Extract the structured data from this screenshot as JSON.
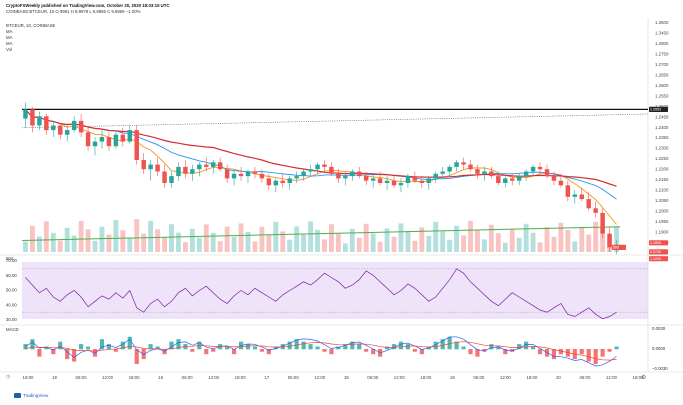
{
  "header": {
    "line1": "CryptoFXWeekly published on TradingView.com, October 20, 2020 18:03:15 UTC",
    "line2": "COINBASE:BTCEUR, 10  O 9991  H 9,9978  L 9,9955  C 9,9969  −1.00%",
    "pair_label": "BTCEUR, 10, COINBASE",
    "ma_labels": [
      "MA",
      "MA",
      "MA",
      "Vol"
    ],
    "rsi_label": "RSI",
    "macd_label": "MACD"
  },
  "footer": {
    "brand": "TradingView",
    "gear_icon": "gear-icon",
    "utc_icon": "clock-icon"
  },
  "colors": {
    "up": "#26a69a",
    "down": "#ef5350",
    "ma_orange": "#f7931a",
    "ma_red": "#d32f2f",
    "ma_blue": "#2196f3",
    "ma_green": "#4caf50",
    "rsi_line": "#7b1fa2",
    "rsi_band": "#efe3fa",
    "macd_blue": "#2962ff",
    "macd_red": "#f44336"
  },
  "chart_data": [
    {
      "type": "candlestick",
      "ylim": [
        0.99,
        1.0
      ],
      "y_tick_labels": [
        "1.3500",
        "1.3450",
        "1.2800",
        "1.2750",
        "1.2700",
        "1.2650",
        "1.2600",
        "1.2550",
        "1.2500",
        "1.2450",
        "1.2400",
        "1.2350",
        "1.2300",
        "1.2250",
        "1.2200",
        "1.2150",
        "1.2100",
        "1.2050",
        "1.2000",
        "1.1950",
        "1.1900",
        "1.1850"
      ],
      "x_tick_labels": [
        "18:00",
        "19",
        "06:00",
        "12:00",
        "18:00",
        "16",
        "06:00",
        "12:00",
        "18:00",
        "17",
        "06:00",
        "12:00",
        "18",
        "06:00",
        "12:00",
        "18:00",
        "19",
        "06:00",
        "12:00",
        "18:00",
        "20",
        "06:00",
        "12:00",
        "18:00"
      ],
      "horizontal_level": 0.9962,
      "price_badges": [
        {
          "label": "1.2853",
          "color": "#222222"
        },
        {
          "label": "1.1806",
          "color": "#ef5350"
        },
        {
          "label": "0.5720",
          "color": "#ef5350"
        },
        {
          "label": "1.1200",
          "color": "#ef5350"
        }
      ],
      "volume_badge": "500",
      "candles": [
        [
          0.9958,
          0.9965,
          0.9954,
          0.9962
        ],
        [
          0.9962,
          0.9963,
          0.9952,
          0.9955
        ],
        [
          0.9955,
          0.9961,
          0.9953,
          0.9959
        ],
        [
          0.9959,
          0.996,
          0.9951,
          0.9953
        ],
        [
          0.9953,
          0.9957,
          0.995,
          0.9955
        ],
        [
          0.9955,
          0.9956,
          0.9949,
          0.9951
        ],
        [
          0.9951,
          0.9955,
          0.9948,
          0.9953
        ],
        [
          0.9953,
          0.9959,
          0.9952,
          0.9957
        ],
        [
          0.9957,
          0.996,
          0.995,
          0.9952
        ],
        [
          0.9952,
          0.9954,
          0.9944,
          0.9946
        ],
        [
          0.9946,
          0.995,
          0.9942,
          0.9948
        ],
        [
          0.9948,
          0.9953,
          0.9945,
          0.995
        ],
        [
          0.995,
          0.9952,
          0.9944,
          0.9946
        ],
        [
          0.9946,
          0.9953,
          0.9945,
          0.9951
        ],
        [
          0.9951,
          0.9954,
          0.9946,
          0.9948
        ],
        [
          0.9948,
          0.9955,
          0.9947,
          0.9953
        ],
        [
          0.9953,
          0.9955,
          0.9938,
          0.994
        ],
        [
          0.994,
          0.9943,
          0.9934,
          0.9936
        ],
        [
          0.9936,
          0.994,
          0.9931,
          0.9938
        ],
        [
          0.9938,
          0.9941,
          0.9933,
          0.9935
        ],
        [
          0.9935,
          0.9938,
          0.9928,
          0.993
        ],
        [
          0.993,
          0.9935,
          0.9928,
          0.9933
        ],
        [
          0.9933,
          0.9939,
          0.9931,
          0.9937
        ],
        [
          0.9937,
          0.994,
          0.9932,
          0.9934
        ],
        [
          0.9934,
          0.9938,
          0.9931,
          0.9936
        ],
        [
          0.9936,
          0.9939,
          0.9933,
          0.9938
        ],
        [
          0.9938,
          0.9941,
          0.9935,
          0.9937
        ],
        [
          0.9937,
          0.994,
          0.9934,
          0.9939
        ],
        [
          0.9939,
          0.9941,
          0.9935,
          0.9936
        ],
        [
          0.9936,
          0.9938,
          0.993,
          0.9932
        ],
        [
          0.9932,
          0.9936,
          0.9929,
          0.9934
        ],
        [
          0.9934,
          0.9937,
          0.9931,
          0.9933
        ],
        [
          0.9933,
          0.9936,
          0.993,
          0.9935
        ],
        [
          0.9935,
          0.9937,
          0.9932,
          0.9934
        ],
        [
          0.9934,
          0.9936,
          0.993,
          0.9932
        ],
        [
          0.9932,
          0.9934,
          0.9927,
          0.9929
        ],
        [
          0.9929,
          0.9932,
          0.9926,
          0.9931
        ],
        [
          0.9931,
          0.9934,
          0.9928,
          0.993
        ],
        [
          0.993,
          0.9933,
          0.9927,
          0.9932
        ],
        [
          0.9932,
          0.9935,
          0.993,
          0.9933
        ],
        [
          0.9933,
          0.9936,
          0.9931,
          0.9935
        ],
        [
          0.9935,
          0.9938,
          0.9933,
          0.9936
        ],
        [
          0.9936,
          0.9939,
          0.9934,
          0.9938
        ],
        [
          0.9938,
          0.994,
          0.9935,
          0.9937
        ],
        [
          0.9937,
          0.9939,
          0.9933,
          0.9934
        ],
        [
          0.9934,
          0.9936,
          0.993,
          0.9932
        ],
        [
          0.9932,
          0.9935,
          0.9929,
          0.9933
        ],
        [
          0.9933,
          0.9936,
          0.9931,
          0.9935
        ],
        [
          0.9935,
          0.9937,
          0.9932,
          0.9933
        ],
        [
          0.9933,
          0.9935,
          0.9929,
          0.9931
        ],
        [
          0.9931,
          0.9934,
          0.9928,
          0.9932
        ],
        [
          0.9932,
          0.9935,
          0.9929,
          0.993
        ],
        [
          0.993,
          0.9933,
          0.9927,
          0.9931
        ],
        [
          0.9931,
          0.9933,
          0.9928,
          0.9929
        ],
        [
          0.9929,
          0.9932,
          0.9926,
          0.993
        ],
        [
          0.993,
          0.9934,
          0.9928,
          0.9933
        ],
        [
          0.9933,
          0.9935,
          0.993,
          0.9931
        ],
        [
          0.9931,
          0.9933,
          0.9928,
          0.993
        ],
        [
          0.993,
          0.9933,
          0.9927,
          0.9932
        ],
        [
          0.9932,
          0.9935,
          0.993,
          0.9934
        ],
        [
          0.9934,
          0.9937,
          0.9932,
          0.9935
        ],
        [
          0.9935,
          0.9938,
          0.9933,
          0.9937
        ],
        [
          0.9937,
          0.994,
          0.9935,
          0.9939
        ],
        [
          0.9939,
          0.9941,
          0.9936,
          0.9938
        ],
        [
          0.9938,
          0.994,
          0.9935,
          0.9936
        ],
        [
          0.9936,
          0.9938,
          0.9932,
          0.9934
        ],
        [
          0.9934,
          0.9937,
          0.9931,
          0.9935
        ],
        [
          0.9935,
          0.9937,
          0.9932,
          0.9933
        ],
        [
          0.9933,
          0.9935,
          0.9929,
          0.993
        ],
        [
          0.993,
          0.9933,
          0.9928,
          0.9932
        ],
        [
          0.9932,
          0.9934,
          0.9929,
          0.9931
        ],
        [
          0.9931,
          0.9934,
          0.9929,
          0.9933
        ],
        [
          0.9933,
          0.9936,
          0.9931,
          0.9935
        ],
        [
          0.9935,
          0.9938,
          0.9933,
          0.9937
        ],
        [
          0.9937,
          0.9939,
          0.9934,
          0.9936
        ],
        [
          0.9936,
          0.9938,
          0.9932,
          0.9933
        ],
        [
          0.9933,
          0.9935,
          0.9929,
          0.9931
        ],
        [
          0.9931,
          0.9934,
          0.9928,
          0.9929
        ],
        [
          0.9929,
          0.9931,
          0.9922,
          0.9924
        ],
        [
          0.9924,
          0.9927,
          0.9921,
          0.9925
        ],
        [
          0.9925,
          0.9928,
          0.9922,
          0.9923
        ],
        [
          0.9923,
          0.9926,
          0.9918,
          0.9919
        ],
        [
          0.9919,
          0.9922,
          0.9915,
          0.9917
        ],
        [
          0.9917,
          0.9919,
          0.9906,
          0.9908
        ],
        [
          0.9908,
          0.9911,
          0.99,
          0.9902
        ],
        [
          0.9902,
          0.9905,
          0.9899,
          0.9903
        ]
      ]
    },
    {
      "type": "line",
      "series": [
        {
          "values": [
            62,
            55,
            48,
            52,
            44,
            40,
            46,
            50,
            44,
            35,
            40,
            45,
            42,
            48,
            43,
            50,
            34,
            30,
            38,
            42,
            35,
            40,
            48,
            52,
            45,
            50,
            54,
            48,
            42,
            38,
            45,
            50,
            46,
            52,
            48,
            44,
            40,
            46,
            50,
            54,
            58,
            55,
            60,
            66,
            62,
            58,
            52,
            55,
            60,
            68,
            64,
            58,
            52,
            46,
            50,
            56,
            52,
            46,
            40,
            44,
            52,
            60,
            70,
            66,
            58,
            52,
            46,
            40,
            36,
            42,
            48,
            44,
            40,
            36,
            32,
            30,
            34,
            38,
            28,
            26,
            30,
            34,
            28,
            24,
            26,
            30
          ]
        }
      ],
      "ylim": [
        20,
        80
      ],
      "y_tick_labels": [
        "70.00",
        "60.00",
        "50.00",
        "40.00",
        "30.00"
      ]
    },
    {
      "type": "bar",
      "series": [
        {
          "values": [
            2,
            4,
            -3,
            1,
            -2,
            3,
            -4,
            -5,
            2,
            1,
            -3,
            4,
            2,
            -1,
            3,
            5,
            -6,
            -4,
            2,
            1,
            -2,
            3,
            4,
            2,
            -1,
            3,
            -2,
            -1,
            2,
            1,
            -2,
            3,
            2,
            1,
            -1,
            -2,
            1,
            2,
            3,
            4,
            3,
            2,
            1,
            -1,
            -2,
            1,
            2,
            3,
            2,
            -1,
            -2,
            -3,
            1,
            2,
            3,
            2,
            -1,
            -2,
            1,
            3,
            4,
            5,
            3,
            1,
            -2,
            -3,
            -1,
            2,
            1,
            -2,
            -1,
            2,
            3,
            1,
            -2,
            -3,
            -4,
            -2,
            -3,
            -4,
            -2,
            -5,
            -6,
            -3,
            -1,
            1
          ]
        }
      ],
      "y_tick_labels": [
        "0.0030",
        "0.0000",
        "−0.0030"
      ]
    }
  ]
}
